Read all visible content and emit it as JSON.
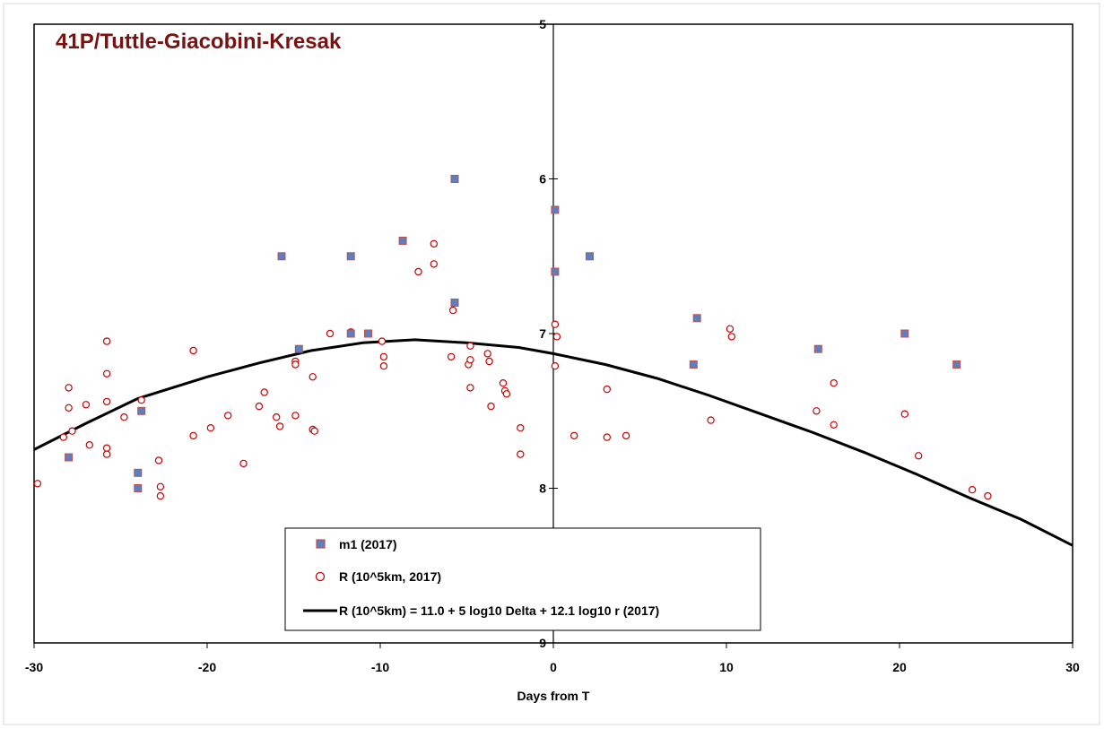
{
  "chart_data": {
    "type": "scatter",
    "title": "41P/Tuttle-Giacobini-Kresak",
    "xlabel": "Days from T",
    "ylabel": "",
    "xlim": [
      -30,
      30
    ],
    "ylim": [
      5,
      9
    ],
    "y_reversed": true,
    "x_ticks": [
      -30,
      -20,
      -10,
      0,
      10,
      20,
      30
    ],
    "y_ticks": [
      5,
      6,
      7,
      8,
      9
    ],
    "grid": false,
    "legend_position": "bottom-center",
    "colors": {
      "m1_fill": "#5b7fbf",
      "m1_edge": "#c0504d",
      "r_edge": "#cc0000",
      "model_line": "#000000",
      "title_color": "#7b1111"
    },
    "series": [
      {
        "name": "m1 (2017)",
        "marker": "square",
        "points": [
          [
            -28.0,
            7.8
          ],
          [
            -24.0,
            7.9
          ],
          [
            -24.0,
            8.0
          ],
          [
            -23.8,
            7.5
          ],
          [
            -15.7,
            6.5
          ],
          [
            -14.7,
            7.1
          ],
          [
            -11.7,
            6.5
          ],
          [
            -11.7,
            7.0
          ],
          [
            -10.7,
            7.0
          ],
          [
            -8.7,
            6.4
          ],
          [
            -5.7,
            6.0
          ],
          [
            -5.7,
            6.8
          ],
          [
            0.1,
            6.2
          ],
          [
            0.1,
            6.6
          ],
          [
            2.1,
            6.5
          ],
          [
            8.1,
            7.2
          ],
          [
            8.3,
            6.9
          ],
          [
            15.3,
            7.1
          ],
          [
            20.3,
            7.0
          ],
          [
            23.3,
            7.2
          ]
        ]
      },
      {
        "name": "R (10^5km, 2017)",
        "marker": "circle",
        "points": [
          [
            -29.8,
            7.97
          ],
          [
            -28.3,
            7.67
          ],
          [
            -28.0,
            7.35
          ],
          [
            -28.0,
            7.48
          ],
          [
            -27.8,
            7.63
          ],
          [
            -27.0,
            7.46
          ],
          [
            -26.8,
            7.72
          ],
          [
            -25.8,
            7.05
          ],
          [
            -25.8,
            7.26
          ],
          [
            -25.8,
            7.44
          ],
          [
            -25.8,
            7.74
          ],
          [
            -25.8,
            7.78
          ],
          [
            -24.8,
            7.54
          ],
          [
            -23.8,
            7.43
          ],
          [
            -22.8,
            7.82
          ],
          [
            -22.7,
            7.99
          ],
          [
            -22.7,
            8.05
          ],
          [
            -20.8,
            7.11
          ],
          [
            -20.8,
            7.66
          ],
          [
            -19.8,
            7.61
          ],
          [
            -18.8,
            7.53
          ],
          [
            -17.9,
            7.84
          ],
          [
            -17.0,
            7.47
          ],
          [
            -16.7,
            7.38
          ],
          [
            -16.0,
            7.54
          ],
          [
            -15.8,
            7.6
          ],
          [
            -14.9,
            7.18
          ],
          [
            -14.9,
            7.2
          ],
          [
            -14.9,
            7.53
          ],
          [
            -13.9,
            7.28
          ],
          [
            -13.9,
            7.62
          ],
          [
            -13.8,
            7.63
          ],
          [
            -12.9,
            7.0
          ],
          [
            -11.7,
            6.99
          ],
          [
            -10.7,
            7.0
          ],
          [
            -9.9,
            7.05
          ],
          [
            -9.8,
            7.15
          ],
          [
            -9.8,
            7.21
          ],
          [
            -7.8,
            6.6
          ],
          [
            -6.9,
            6.42
          ],
          [
            -6.9,
            6.55
          ],
          [
            -5.9,
            7.15
          ],
          [
            -5.8,
            6.85
          ],
          [
            -4.9,
            7.2
          ],
          [
            -4.8,
            7.08
          ],
          [
            -4.8,
            7.17
          ],
          [
            -4.8,
            7.35
          ],
          [
            -3.8,
            7.13
          ],
          [
            -3.7,
            7.18
          ],
          [
            -3.6,
            7.47
          ],
          [
            -2.9,
            7.32
          ],
          [
            -2.8,
            7.37
          ],
          [
            -2.7,
            7.39
          ],
          [
            -1.9,
            7.61
          ],
          [
            -1.9,
            7.78
          ],
          [
            0.1,
            7.21
          ],
          [
            0.1,
            6.94
          ],
          [
            0.2,
            7.02
          ],
          [
            1.2,
            7.66
          ],
          [
            3.1,
            7.36
          ],
          [
            3.1,
            7.67
          ],
          [
            4.2,
            7.66
          ],
          [
            9.1,
            7.56
          ],
          [
            10.2,
            6.97
          ],
          [
            10.3,
            7.02
          ],
          [
            15.2,
            7.5
          ],
          [
            16.2,
            7.32
          ],
          [
            16.2,
            7.59
          ],
          [
            20.3,
            7.52
          ],
          [
            21.1,
            7.79
          ],
          [
            24.2,
            8.01
          ],
          [
            25.1,
            8.05
          ]
        ]
      },
      {
        "name": "R (10^5km) = 11.0 + 5 log10 Delta + 12.1 log10 r (2017)",
        "marker": "line",
        "points": [
          [
            -30,
            7.75
          ],
          [
            -27,
            7.58
          ],
          [
            -24,
            7.42
          ],
          [
            -20,
            7.28
          ],
          [
            -17,
            7.19
          ],
          [
            -14,
            7.11
          ],
          [
            -11,
            7.06
          ],
          [
            -8,
            7.04
          ],
          [
            -5,
            7.06
          ],
          [
            -2,
            7.09
          ],
          [
            0,
            7.13
          ],
          [
            3,
            7.2
          ],
          [
            6,
            7.29
          ],
          [
            9,
            7.4
          ],
          [
            12,
            7.52
          ],
          [
            15,
            7.64
          ],
          [
            18,
            7.77
          ],
          [
            21,
            7.91
          ],
          [
            24,
            8.06
          ],
          [
            27,
            8.2
          ],
          [
            30,
            8.37
          ]
        ]
      }
    ]
  }
}
